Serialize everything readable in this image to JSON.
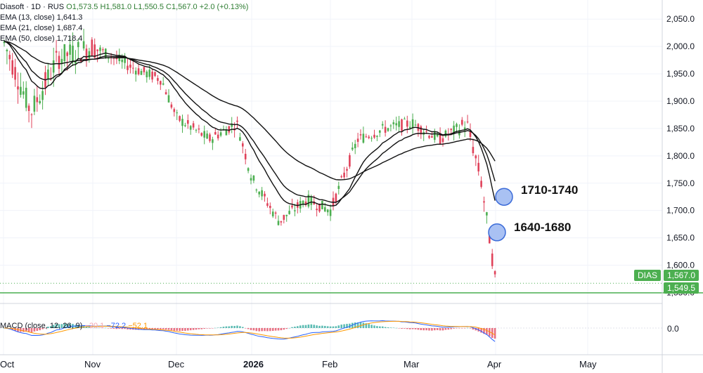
{
  "header": {
    "symbol": "Diasoft · 1D · RUS",
    "ohlc": "O1,573.5 H1,581.0 L1,550.5 C1,567.0 +2.0 (+0.13%)",
    "ema13": "EMA (13, close)  1,641.3",
    "ema21": "EMA (21, close)  1,687.4",
    "ema50": "EMA (50, close)  1,718.4"
  },
  "macd": {
    "label": "MACD (close, 12, 26, 9)",
    "hist": "−20.1",
    "macd": "−72.2",
    "signal": "−52.1",
    "zero_label": "0.0"
  },
  "price_tags": {
    "symbol": "DIAS",
    "last": "1,567.0",
    "level": "1,549.5"
  },
  "annotations": {
    "target1": "1710-1740",
    "target2": "1640-1680"
  },
  "colors": {
    "up": "#26a69a",
    "up_candle": "#4caf50",
    "down": "#e0425a",
    "ema": "#111111",
    "support": "#4caf50",
    "circle_fill": "#a9c1f3",
    "circle_stroke": "#3b6bd8",
    "macd_line": "#2962ff",
    "signal_line": "#ff9800"
  },
  "chart_data": {
    "type": "line",
    "title": "Diasoft · 1D · RUS",
    "x_tick_labels": [
      "Oct",
      "Nov",
      "Dec",
      "2026",
      "Feb",
      "Mar",
      "Apr",
      "May"
    ],
    "y_tick_labels": [
      "2,050.0",
      "2,000.0",
      "1,950.0",
      "1,900.0",
      "1,850.0",
      "1,800.0",
      "1,750.0",
      "1,700.0",
      "1,650.0",
      "1,600.0",
      "1,550.0"
    ],
    "ylim": [
      1530,
      2085
    ],
    "support_level": 1549.5,
    "last_close": 1567.0,
    "price_path": [
      [
        "Oct",
        2010
      ],
      [
        "Oct+10d",
        1880
      ],
      [
        "Oct+20d",
        1980
      ],
      [
        "Nov",
        2000
      ],
      [
        "Nov+15d",
        1960
      ],
      [
        "Nov+25d",
        1940
      ],
      [
        "Dec",
        1870
      ],
      [
        "Dec+12d",
        1830
      ],
      [
        "Dec+22d",
        1860
      ],
      [
        "2026",
        1760
      ],
      [
        "2026+10d",
        1680
      ],
      [
        "2026+20d",
        1720
      ],
      [
        "Feb",
        1700
      ],
      [
        "Feb+10d",
        1830
      ],
      [
        "Feb+20d",
        1850
      ],
      [
        "Mar",
        1860
      ],
      [
        "Mar+10d",
        1830
      ],
      [
        "Mar+20d",
        1860
      ],
      [
        "Mar+25d",
        1760
      ],
      [
        "Mar+28d",
        1660
      ],
      [
        "Apr",
        1567
      ]
    ],
    "series": [
      {
        "name": "EMA (13, close)",
        "last": 1641.3
      },
      {
        "name": "EMA (21, close)",
        "last": 1687.4
      },
      {
        "name": "EMA (50, close)",
        "last": 1718.4
      }
    ],
    "targets": [
      {
        "label": "1710-1740",
        "low": 1710,
        "high": 1740
      },
      {
        "label": "1640-1680",
        "low": 1640,
        "high": 1680
      }
    ],
    "macd": {
      "params": [
        12,
        26,
        9
      ],
      "histogram": -20.1,
      "macd": -72.2,
      "signal": -52.1
    }
  }
}
